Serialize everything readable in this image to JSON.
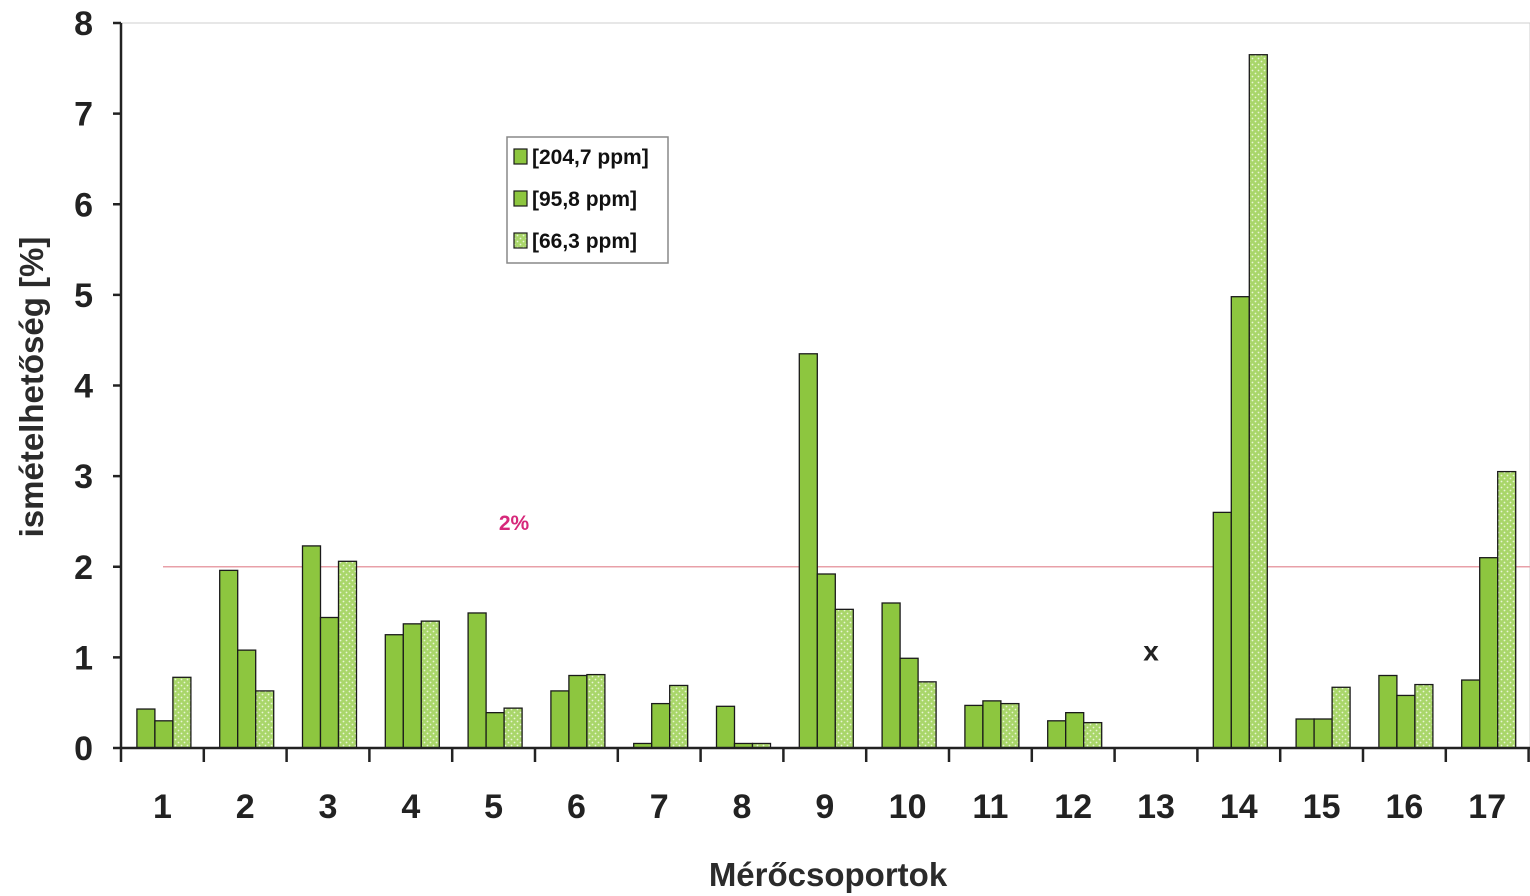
{
  "chart_data": {
    "type": "bar",
    "title": "",
    "xlabel": "Mérőcsoportok",
    "ylabel": "ismételhetőség [%]",
    "ylim": [
      0,
      8
    ],
    "yticks": [
      "0",
      "1",
      "2",
      "3",
      "4",
      "5",
      "6",
      "7",
      "8"
    ],
    "categories": [
      "1",
      "2",
      "3",
      "4",
      "5",
      "6",
      "7",
      "8",
      "9",
      "10",
      "11",
      "12",
      "13",
      "14",
      "15",
      "16",
      "17"
    ],
    "series": [
      {
        "name": "[204,7 ppm]",
        "color": "#8dc63f",
        "values": [
          0.43,
          1.96,
          2.23,
          1.25,
          1.49,
          0.63,
          0.05,
          0.46,
          4.35,
          1.6,
          0.47,
          0.3,
          null,
          2.6,
          0.32,
          0.8,
          0.75
        ]
      },
      {
        "name": "[95,8 ppm]",
        "color": "#8dc63f",
        "values": [
          0.3,
          1.08,
          1.44,
          1.37,
          0.39,
          0.8,
          0.49,
          0.05,
          1.92,
          0.99,
          0.52,
          0.39,
          null,
          4.98,
          0.32,
          0.58,
          2.1
        ]
      },
      {
        "name": "[66,3 ppm]",
        "color": "#a9d66a",
        "values": [
          0.78,
          0.63,
          2.06,
          1.4,
          0.44,
          0.81,
          0.69,
          0.05,
          1.53,
          0.73,
          0.49,
          0.28,
          null,
          7.65,
          0.67,
          0.7,
          3.05
        ]
      }
    ],
    "reference_line": {
      "value": 2,
      "label": "2%",
      "color": "#e8a0a8"
    },
    "annotations": [
      {
        "category": "13",
        "text": "x"
      }
    ],
    "legend_position": "top-left"
  }
}
